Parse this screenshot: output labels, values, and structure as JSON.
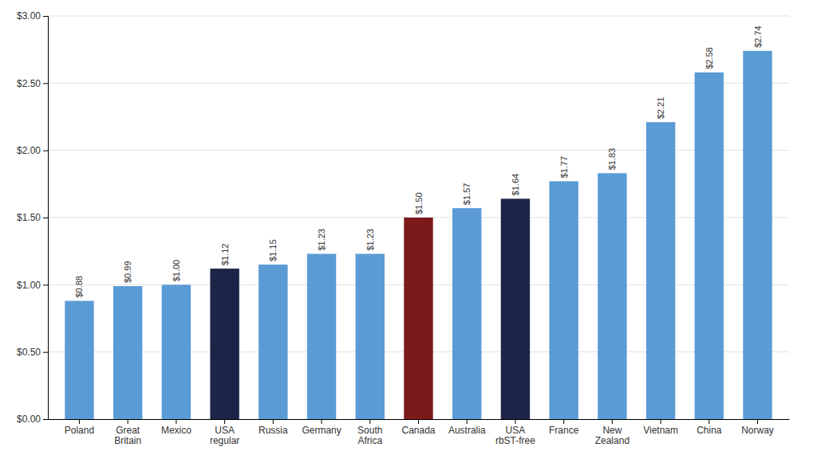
{
  "chart_data": {
    "type": "bar",
    "categories": [
      "Poland",
      "Great\nBritain",
      "Mexico",
      "USA\nregular",
      "Russia",
      "Germany",
      "South\nAfrica",
      "Canada",
      "Australia",
      "USA\nrbST-free",
      "France",
      "New\nZealand",
      "Vietnam",
      "China",
      "Norway"
    ],
    "values": [
      0.88,
      0.99,
      1.0,
      1.12,
      1.15,
      1.23,
      1.23,
      1.5,
      1.57,
      1.64,
      1.77,
      1.83,
      2.21,
      2.58,
      2.74
    ],
    "value_labels": [
      "$0.88",
      "$0.99",
      "$1.00",
      "$1.12",
      "$1.15",
      "$1.23",
      "$1.23",
      "$1.50",
      "$1.57",
      "$1.64",
      "$1.77",
      "$1.83",
      "$2.21",
      "$2.58",
      "$2.74"
    ],
    "colors": [
      "#5b9bd5",
      "#5b9bd5",
      "#5b9bd5",
      "#1c2547",
      "#5b9bd5",
      "#5b9bd5",
      "#5b9bd5",
      "#7b1a1a",
      "#5b9bd5",
      "#1c2547",
      "#5b9bd5",
      "#5b9bd5",
      "#5b9bd5",
      "#5b9bd5",
      "#5b9bd5"
    ],
    "data_labels": true,
    "ylim": [
      0.0,
      3.0
    ],
    "yticks": [
      {
        "value": 0.0,
        "label": "$0.00"
      },
      {
        "value": 0.5,
        "label": "$0.50"
      },
      {
        "value": 1.0,
        "label": "$1.00"
      },
      {
        "value": 1.5,
        "label": "$1.50"
      },
      {
        "value": 2.0,
        "label": "$2.00"
      },
      {
        "value": 2.5,
        "label": "$2.50"
      },
      {
        "value": 3.0,
        "label": "$3.00"
      }
    ],
    "grid": true
  }
}
